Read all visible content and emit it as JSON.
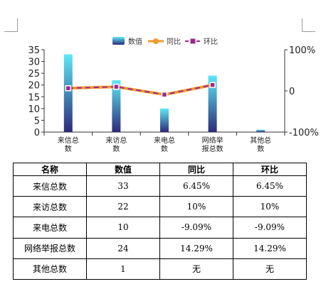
{
  "chart_data": {
    "type": "bar",
    "categories": [
      [
        "来信总",
        "数"
      ],
      [
        "来访总",
        "数"
      ],
      [
        "来电总",
        "数"
      ],
      [
        "网络举",
        "报总数"
      ],
      [
        "其他总",
        "数"
      ]
    ],
    "series": [
      {
        "name": "数值",
        "type": "bar",
        "axis": "left",
        "values": [
          33,
          22,
          10,
          24,
          1
        ]
      },
      {
        "name": "同比",
        "type": "line",
        "axis": "right",
        "values": [
          6.45,
          10,
          -9.09,
          14.29,
          null
        ]
      },
      {
        "name": "环比",
        "type": "line",
        "axis": "right",
        "values": [
          6.45,
          10,
          -9.09,
          14.29,
          null
        ]
      }
    ],
    "y_left": {
      "min": 0,
      "max": 35,
      "ticks": [
        "0",
        "5",
        "10",
        "15",
        "20",
        "25",
        "30",
        "35"
      ]
    },
    "y_right": {
      "min": -100,
      "max": 100,
      "ticks": [
        "-100%",
        "0",
        "100%"
      ]
    },
    "legend_position": "top-center",
    "colors": {
      "bar_top": "#5ee8f5",
      "bar_bottom": "#2d2a7a",
      "yoy": "#f29a2e",
      "mom": "#9b2a8e"
    }
  },
  "table": {
    "headers": [
      "名称",
      "数值",
      "同比",
      "环比"
    ],
    "rows": [
      [
        "来信总数",
        "33",
        "6.45%",
        "6.45%"
      ],
      [
        "来访总数",
        "22",
        "10%",
        "10%"
      ],
      [
        "来电总数",
        "10",
        "-9.09%",
        "-9.09%"
      ],
      [
        "网络举报总数",
        "24",
        "14.29%",
        "14.29%"
      ],
      [
        "其他总数",
        "1",
        "无",
        "无"
      ]
    ]
  }
}
